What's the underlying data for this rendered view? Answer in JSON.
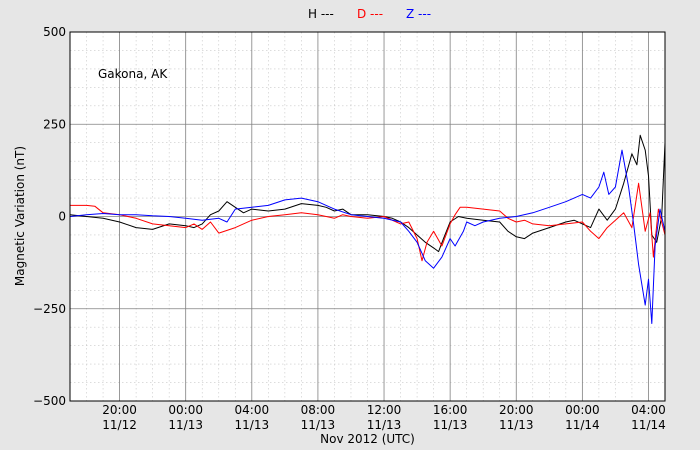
{
  "chart_data": {
    "type": "line",
    "title": "",
    "location_label": "Gakona, AK",
    "xlabel": "Nov 2012 (UTC)",
    "ylabel": "Magnetic Variation (nT)",
    "ylim": [
      -500,
      500
    ],
    "y_major_ticks": [
      -500,
      -250,
      0,
      250,
      500
    ],
    "y_tick_labels": [
      "−500",
      "−250",
      "0",
      "250",
      "500"
    ],
    "y_minor_step": 50,
    "xlim_hours": [
      17,
      53
    ],
    "x_ticks": [
      {
        "hour": 20,
        "time": "20:00",
        "date": "11/12"
      },
      {
        "hour": 24,
        "time": "00:00",
        "date": "11/13"
      },
      {
        "hour": 28,
        "time": "04:00",
        "date": "11/13"
      },
      {
        "hour": 32,
        "time": "08:00",
        "date": "11/13"
      },
      {
        "hour": 36,
        "time": "12:00",
        "date": "11/13"
      },
      {
        "hour": 40,
        "time": "16:00",
        "date": "11/13"
      },
      {
        "hour": 44,
        "time": "20:00",
        "date": "11/13"
      },
      {
        "hour": 48,
        "time": "00:00",
        "date": "11/14"
      },
      {
        "hour": 52,
        "time": "04:00",
        "date": "11/14"
      }
    ],
    "x_minor_step_hours": 1,
    "grid": true,
    "legend_placement": "top-center",
    "series": [
      {
        "name": "H ---",
        "color": "#000000",
        "points": [
          [
            17,
            5
          ],
          [
            18,
            0
          ],
          [
            19,
            -5
          ],
          [
            20,
            -15
          ],
          [
            21,
            -30
          ],
          [
            22,
            -35
          ],
          [
            23,
            -20
          ],
          [
            24,
            -25
          ],
          [
            24.5,
            -30
          ],
          [
            25,
            -20
          ],
          [
            25.5,
            5
          ],
          [
            26,
            15
          ],
          [
            26.5,
            40
          ],
          [
            27,
            25
          ],
          [
            27.5,
            10
          ],
          [
            28,
            20
          ],
          [
            29,
            15
          ],
          [
            30,
            20
          ],
          [
            31,
            35
          ],
          [
            32,
            30
          ],
          [
            32.5,
            25
          ],
          [
            33,
            15
          ],
          [
            33.5,
            20
          ],
          [
            34,
            5
          ],
          [
            35,
            5
          ],
          [
            36,
            0
          ],
          [
            36.5,
            -5
          ],
          [
            37,
            -15
          ],
          [
            37.5,
            -30
          ],
          [
            38,
            -50
          ],
          [
            38.5,
            -70
          ],
          [
            39,
            -85
          ],
          [
            39.3,
            -95
          ],
          [
            39.6,
            -60
          ],
          [
            40,
            -15
          ],
          [
            40.5,
            0
          ],
          [
            41,
            -5
          ],
          [
            42,
            -10
          ],
          [
            43,
            -15
          ],
          [
            43.5,
            -40
          ],
          [
            44,
            -55
          ],
          [
            44.5,
            -60
          ],
          [
            45,
            -45
          ],
          [
            46,
            -30
          ],
          [
            47,
            -15
          ],
          [
            47.5,
            -10
          ],
          [
            48,
            -20
          ],
          [
            48.5,
            -30
          ],
          [
            49,
            20
          ],
          [
            49.5,
            -10
          ],
          [
            50,
            20
          ],
          [
            50.5,
            90
          ],
          [
            51,
            170
          ],
          [
            51.3,
            140
          ],
          [
            51.5,
            220
          ],
          [
            51.8,
            180
          ],
          [
            52,
            110
          ],
          [
            52.2,
            -50
          ],
          [
            52.5,
            -70
          ],
          [
            52.8,
            0
          ],
          [
            53,
            200
          ]
        ]
      },
      {
        "name": "D ---",
        "color": "#ff0000",
        "points": [
          [
            17,
            30
          ],
          [
            18,
            30
          ],
          [
            18.5,
            28
          ],
          [
            19,
            10
          ],
          [
            20,
            5
          ],
          [
            21,
            -5
          ],
          [
            22,
            -20
          ],
          [
            23,
            -25
          ],
          [
            24,
            -30
          ],
          [
            24.5,
            -20
          ],
          [
            25,
            -35
          ],
          [
            25.5,
            -15
          ],
          [
            26,
            -45
          ],
          [
            27,
            -30
          ],
          [
            28,
            -10
          ],
          [
            29,
            0
          ],
          [
            30,
            5
          ],
          [
            31,
            10
          ],
          [
            32,
            5
          ],
          [
            33,
            -5
          ],
          [
            33.5,
            5
          ],
          [
            34,
            0
          ],
          [
            35,
            -5
          ],
          [
            36,
            0
          ],
          [
            37,
            -20
          ],
          [
            37.5,
            -15
          ],
          [
            38,
            -60
          ],
          [
            38.3,
            -120
          ],
          [
            38.6,
            -70
          ],
          [
            39,
            -40
          ],
          [
            39.5,
            -80
          ],
          [
            40,
            -20
          ],
          [
            40.3,
            5
          ],
          [
            40.6,
            25
          ],
          [
            41,
            25
          ],
          [
            42,
            20
          ],
          [
            43,
            15
          ],
          [
            43.5,
            -5
          ],
          [
            44,
            -15
          ],
          [
            44.5,
            -10
          ],
          [
            45,
            -20
          ],
          [
            46,
            -25
          ],
          [
            47,
            -20
          ],
          [
            48,
            -15
          ],
          [
            48.5,
            -40
          ],
          [
            49,
            -60
          ],
          [
            49.5,
            -30
          ],
          [
            50,
            -10
          ],
          [
            50.5,
            10
          ],
          [
            51,
            -30
          ],
          [
            51.4,
            90
          ],
          [
            51.8,
            -40
          ],
          [
            52.1,
            10
          ],
          [
            52.3,
            -110
          ],
          [
            52.6,
            20
          ],
          [
            53,
            -50
          ]
        ]
      },
      {
        "name": "Z ---",
        "color": "#0000ff",
        "points": [
          [
            17,
            0
          ],
          [
            18,
            5
          ],
          [
            19,
            8
          ],
          [
            20,
            5
          ],
          [
            21,
            5
          ],
          [
            22,
            2
          ],
          [
            23,
            0
          ],
          [
            24,
            -5
          ],
          [
            25,
            -10
          ],
          [
            26,
            -5
          ],
          [
            26.5,
            -15
          ],
          [
            27,
            20
          ],
          [
            28,
            25
          ],
          [
            29,
            30
          ],
          [
            30,
            45
          ],
          [
            31,
            50
          ],
          [
            32,
            40
          ],
          [
            32.5,
            30
          ],
          [
            33,
            20
          ],
          [
            34,
            5
          ],
          [
            35,
            0
          ],
          [
            36,
            -5
          ],
          [
            37,
            -15
          ],
          [
            37.5,
            -40
          ],
          [
            38,
            -70
          ],
          [
            38.5,
            -120
          ],
          [
            39,
            -140
          ],
          [
            39.5,
            -110
          ],
          [
            40,
            -60
          ],
          [
            40.3,
            -80
          ],
          [
            40.8,
            -40
          ],
          [
            41,
            -15
          ],
          [
            41.5,
            -25
          ],
          [
            42,
            -15
          ],
          [
            43,
            -5
          ],
          [
            44,
            0
          ],
          [
            45,
            10
          ],
          [
            46,
            25
          ],
          [
            47,
            40
          ],
          [
            48,
            60
          ],
          [
            48.5,
            50
          ],
          [
            49,
            80
          ],
          [
            49.3,
            120
          ],
          [
            49.6,
            60
          ],
          [
            50,
            80
          ],
          [
            50.4,
            180
          ],
          [
            50.8,
            80
          ],
          [
            51.1,
            -20
          ],
          [
            51.4,
            -130
          ],
          [
            51.8,
            -240
          ],
          [
            52,
            -170
          ],
          [
            52.2,
            -290
          ],
          [
            52.4,
            -80
          ],
          [
            52.7,
            20
          ],
          [
            53,
            -40
          ]
        ]
      }
    ]
  }
}
